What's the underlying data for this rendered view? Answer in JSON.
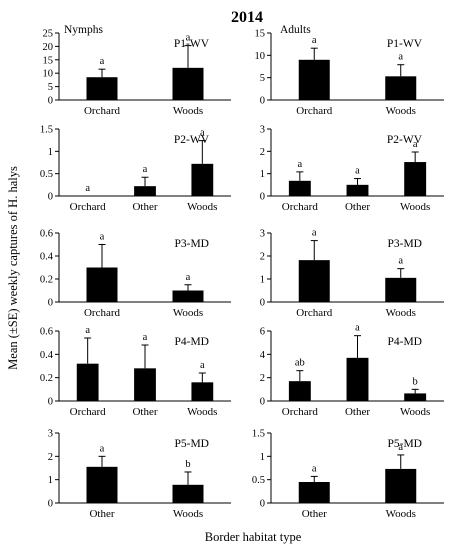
{
  "figure": {
    "title": "2014",
    "ylabel": "Mean (±SE) weekly captures of H. halys",
    "xlabel": "Border habitat type",
    "column_labels": [
      "Nymphs",
      "Adults"
    ]
  },
  "chart_data": [
    {
      "type": "bar",
      "stage": "Nymphs",
      "label": "P1-WV",
      "categories": [
        "Orchard",
        "Woods"
      ],
      "values": [
        8.5,
        12
      ],
      "errors": [
        3,
        8.3
      ],
      "letters": [
        "a",
        "a"
      ],
      "ylim": [
        0,
        25
      ],
      "yticks": [
        0,
        5,
        10,
        15,
        20,
        25
      ]
    },
    {
      "type": "bar",
      "stage": "Adults",
      "label": "P1-WV",
      "categories": [
        "Orchard",
        "Woods"
      ],
      "values": [
        9,
        5.3
      ],
      "errors": [
        2.6,
        2.6
      ],
      "letters": [
        "a",
        "a"
      ],
      "ylim": [
        0,
        15
      ],
      "yticks": [
        0,
        5,
        10,
        15
      ]
    },
    {
      "type": "bar",
      "stage": "Nymphs",
      "label": "P2-WV",
      "categories": [
        "Orchard",
        "Other",
        "Woods"
      ],
      "values": [
        0,
        0.22,
        0.72
      ],
      "errors": [
        0,
        0.2,
        0.52
      ],
      "letters": [
        "a",
        "a",
        "a"
      ],
      "ylim": [
        0,
        1.5
      ],
      "yticks": [
        0,
        0.5,
        1,
        1.5
      ]
    },
    {
      "type": "bar",
      "stage": "Adults",
      "label": "P2-WV",
      "categories": [
        "Orchard",
        "Other",
        "Woods"
      ],
      "values": [
        0.68,
        0.5,
        1.52
      ],
      "errors": [
        0.4,
        0.28,
        0.45
      ],
      "letters": [
        "a",
        "a",
        "a"
      ],
      "ylim": [
        0,
        3
      ],
      "yticks": [
        0,
        1,
        2,
        3
      ]
    },
    {
      "type": "bar",
      "stage": "Nymphs",
      "label": "P3-MD",
      "categories": [
        "Orchard",
        "Woods"
      ],
      "values": [
        0.3,
        0.1
      ],
      "errors": [
        0.2,
        0.05
      ],
      "letters": [
        "a",
        "a"
      ],
      "ylim": [
        0,
        0.6
      ],
      "yticks": [
        0,
        0.2,
        0.4,
        0.6
      ]
    },
    {
      "type": "bar",
      "stage": "Adults",
      "label": "P3-MD",
      "categories": [
        "Orchard",
        "Woods"
      ],
      "values": [
        1.82,
        1.05
      ],
      "errors": [
        0.85,
        0.4
      ],
      "letters": [
        "a",
        "a"
      ],
      "ylim": [
        0,
        3
      ],
      "yticks": [
        0,
        1,
        2,
        3
      ]
    },
    {
      "type": "bar",
      "stage": "Nymphs",
      "label": "P4-MD",
      "categories": [
        "Orchard",
        "Other",
        "Woods"
      ],
      "values": [
        0.32,
        0.28,
        0.16
      ],
      "errors": [
        0.22,
        0.2,
        0.08
      ],
      "letters": [
        "a",
        "a",
        "a"
      ],
      "ylim": [
        0,
        0.6
      ],
      "yticks": [
        0,
        0.2,
        0.4,
        0.6
      ]
    },
    {
      "type": "bar",
      "stage": "Adults",
      "label": "P4-MD",
      "categories": [
        "Orchard",
        "Other",
        "Woods"
      ],
      "values": [
        1.7,
        3.7,
        0.65
      ],
      "errors": [
        0.9,
        1.9,
        0.35
      ],
      "letters": [
        "ab",
        "a",
        "b"
      ],
      "ylim": [
        0,
        6
      ],
      "yticks": [
        0,
        2,
        4,
        6
      ]
    },
    {
      "type": "bar",
      "stage": "Nymphs",
      "label": "P5-MD",
      "categories": [
        "Other",
        "Woods"
      ],
      "values": [
        1.55,
        0.78
      ],
      "errors": [
        0.45,
        0.55
      ],
      "letters": [
        "a",
        "b"
      ],
      "ylim": [
        0,
        3
      ],
      "yticks": [
        0,
        1,
        2,
        3
      ]
    },
    {
      "type": "bar",
      "stage": "Adults",
      "label": "P5-MD",
      "categories": [
        "Other",
        "Woods"
      ],
      "values": [
        0.45,
        0.73
      ],
      "errors": [
        0.12,
        0.3
      ],
      "letters": [
        "a",
        "a"
      ],
      "ylim": [
        0,
        1.5
      ],
      "yticks": [
        0,
        0.5,
        1,
        1.5
      ]
    }
  ]
}
